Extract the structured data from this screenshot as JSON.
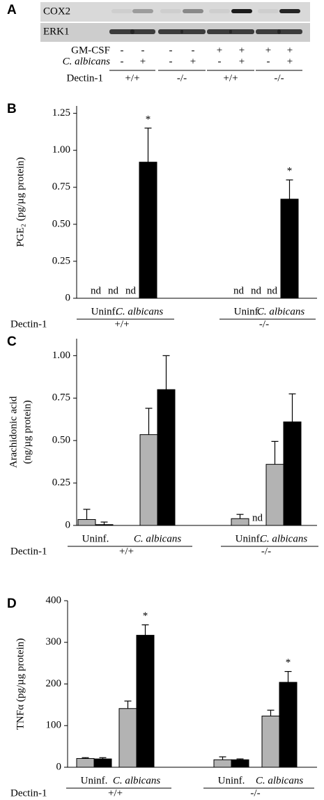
{
  "blot": {
    "panel": "A",
    "rows": [
      "COX2",
      "ERK1"
    ],
    "conditions": [
      {
        "label": "GM-CSF",
        "signs": [
          "-",
          "-",
          "-",
          "-",
          "+",
          "+",
          "+",
          "+"
        ]
      },
      {
        "label": "C. albicans",
        "signs": [
          "-",
          "+",
          "-",
          "+",
          "-",
          "+",
          "-",
          "+"
        ]
      }
    ],
    "genotype_label": "Dectin-1",
    "genotypes": [
      "+/+",
      "-/-",
      "+/+",
      "-/-"
    ]
  },
  "chart_data": [
    {
      "type": "bar",
      "panel": "B",
      "ylabel": [
        "PGE₂ (pg/µg protein)"
      ],
      "categories": [
        "Uninf.",
        "C. albicans",
        "Uninf.",
        "C. albicans"
      ],
      "group_label": "Dectin-1",
      "groups": [
        "+/+",
        "-/-"
      ],
      "series": [
        {
          "color": "#b3b3b3",
          "values": [
            null,
            null,
            null,
            null
          ],
          "errors": [
            null,
            null,
            null,
            null
          ],
          "value_labels": [
            "nd",
            "nd",
            "nd",
            "nd"
          ]
        },
        {
          "color": "#000000",
          "values": [
            null,
            0.92,
            null,
            0.67
          ],
          "errors": [
            null,
            0.23,
            null,
            0.13
          ],
          "value_labels": [
            "nd",
            null,
            "nd",
            null
          ],
          "markers": [
            null,
            "*",
            null,
            "*"
          ]
        }
      ],
      "ylim": [
        0,
        1.3
      ],
      "yticks": [
        0,
        0.25,
        {
          "value": 0.5,
          "label": "0.50"
        },
        0.75,
        {
          "value": 1,
          "label": "1.00"
        },
        1.25
      ]
    },
    {
      "type": "bar",
      "panel": "C",
      "ylabel": [
        "Arachidonic acid",
        "(ng/µg protein)"
      ],
      "categories": [
        "Uninf.",
        "C. albicans",
        "Uninf.",
        "C. albicans"
      ],
      "group_label": "Dectin-1",
      "groups": [
        "+/+",
        "-/-"
      ],
      "series": [
        {
          "color": "#b3b3b3",
          "values": [
            0.035,
            0.535,
            0.04,
            0.36
          ],
          "errors": [
            0.06,
            0.155,
            0.025,
            0.135
          ]
        },
        {
          "color": "#000000",
          "values": [
            0.005,
            0.8,
            null,
            0.61
          ],
          "errors": [
            0.015,
            0.2,
            null,
            0.165
          ],
          "value_labels": [
            null,
            null,
            "nd",
            null
          ]
        }
      ],
      "ylim": [
        0,
        1.1
      ],
      "yticks": [
        0,
        0.25,
        {
          "value": 0.5,
          "label": "0.50"
        },
        0.75,
        {
          "value": 1,
          "label": "1.00"
        }
      ]
    },
    {
      "type": "bar",
      "panel": "D",
      "ylabel": [
        "TNFα (pg/µg protein)"
      ],
      "categories": [
        "Uninf.",
        "C. albicans",
        "Uninf.",
        "C. albicans"
      ],
      "group_label": "Dectin-1",
      "groups": [
        "+/+",
        "-/-"
      ],
      "series": [
        {
          "color": "#b3b3b3",
          "values": [
            21,
            141,
            18,
            123
          ],
          "errors": [
            2,
            18,
            7,
            14
          ]
        },
        {
          "color": "#000000",
          "values": [
            20,
            317,
            18,
            204
          ],
          "errors": [
            3,
            25,
            2,
            26
          ],
          "markers": [
            null,
            "*",
            null,
            "*"
          ]
        }
      ],
      "ylim": [
        0,
        400
      ],
      "yticks": [
        0,
        100,
        200,
        300,
        400
      ]
    }
  ]
}
